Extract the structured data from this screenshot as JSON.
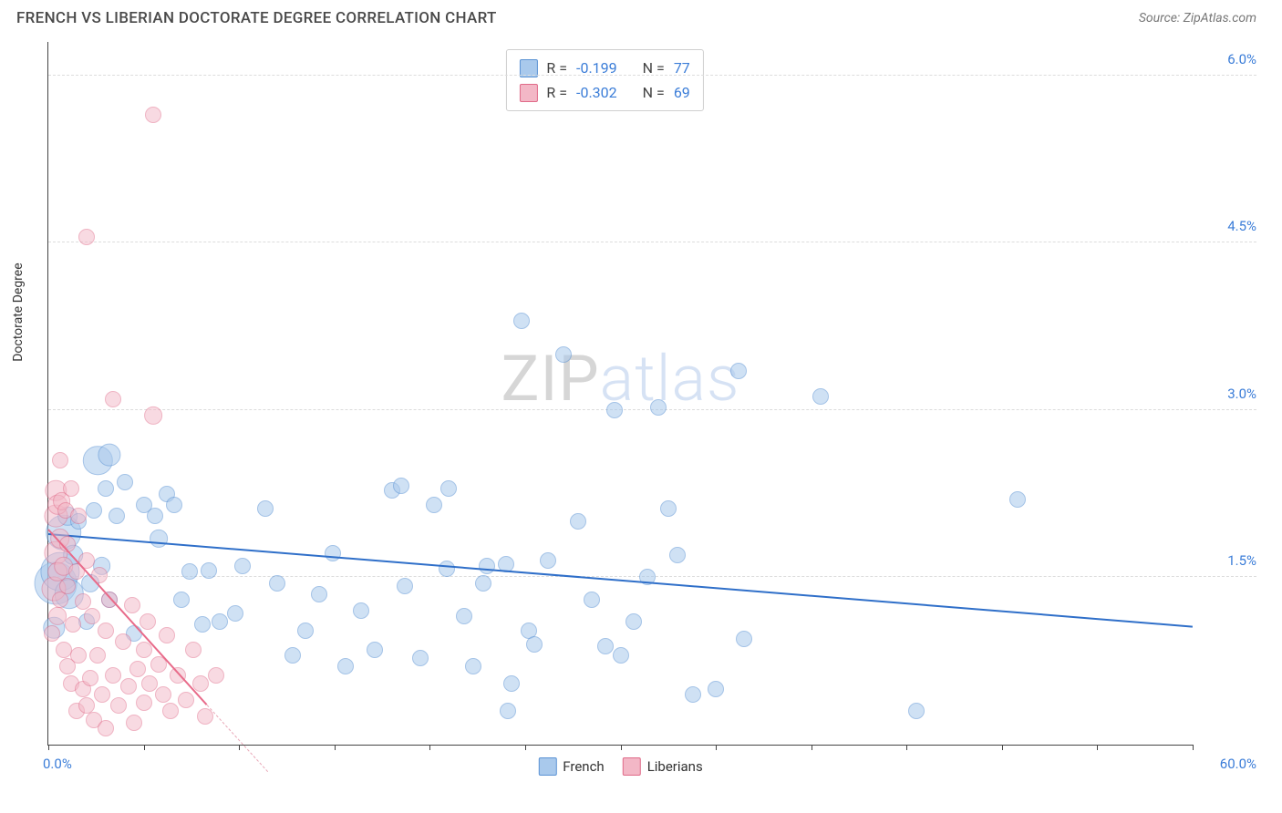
{
  "title": "FRENCH VS LIBERIAN DOCTORATE DEGREE CORRELATION CHART",
  "source_label": "Source:",
  "source_value": "ZipAtlas.com",
  "ylabel": "Doctorate Degree",
  "watermark": {
    "part1": "ZIP",
    "part2": "atlas"
  },
  "chart": {
    "type": "scatter",
    "xlim": [
      0,
      60
    ],
    "ylim": [
      0,
      6.3
    ],
    "x_tick_step": 5,
    "y_ticks": [
      1.5,
      3.0,
      4.5,
      6.0
    ],
    "y_tick_labels": [
      "1.5%",
      "3.0%",
      "4.5%",
      "6.0%"
    ],
    "x_min_label": "0.0%",
    "x_max_label": "60.0%",
    "background_color": "#ffffff",
    "grid_color": "#dcdcdc",
    "axis_color": "#444444",
    "tick_label_color": "#3b7dd8",
    "point_base_radius": 9,
    "series": [
      {
        "name": "French",
        "fill": "#a9c9ec",
        "stroke": "#5b93d4",
        "fill_opacity": 0.55,
        "trend": {
          "x1": 0,
          "y1": 1.88,
          "x2": 60,
          "y2": 1.05,
          "color": "#2f6fc9",
          "width": 2.5
        },
        "points": [
          {
            "x": 0.3,
            "y": 1.05,
            "s": 1.3
          },
          {
            "x": 0.4,
            "y": 1.45,
            "s": 2.6
          },
          {
            "x": 0.6,
            "y": 1.55,
            "s": 2.4
          },
          {
            "x": 0.8,
            "y": 1.9,
            "s": 2.2
          },
          {
            "x": 1.0,
            "y": 2.05,
            "s": 1.2
          },
          {
            "x": 1.1,
            "y": 1.35,
            "s": 1.8
          },
          {
            "x": 1.3,
            "y": 1.7,
            "s": 1.2
          },
          {
            "x": 1.6,
            "y": 2.0,
            "s": 1.0
          },
          {
            "x": 2.0,
            "y": 1.1,
            "s": 1.0
          },
          {
            "x": 2.2,
            "y": 1.45,
            "s": 1.1
          },
          {
            "x": 2.4,
            "y": 2.1,
            "s": 1.0
          },
          {
            "x": 2.8,
            "y": 1.6,
            "s": 1.1
          },
          {
            "x": 2.6,
            "y": 2.55,
            "s": 1.8
          },
          {
            "x": 3.0,
            "y": 2.3,
            "s": 1.0
          },
          {
            "x": 3.2,
            "y": 1.3,
            "s": 1.0
          },
          {
            "x": 3.2,
            "y": 2.6,
            "s": 1.4
          },
          {
            "x": 3.6,
            "y": 2.05,
            "s": 1.0
          },
          {
            "x": 4.0,
            "y": 2.35,
            "s": 1.0
          },
          {
            "x": 4.5,
            "y": 1.0,
            "s": 1.0
          },
          {
            "x": 5.0,
            "y": 2.15,
            "s": 1.0
          },
          {
            "x": 5.6,
            "y": 2.05,
            "s": 1.0
          },
          {
            "x": 5.8,
            "y": 1.85,
            "s": 1.1
          },
          {
            "x": 6.2,
            "y": 2.25,
            "s": 1.0
          },
          {
            "x": 6.6,
            "y": 2.15,
            "s": 1.0
          },
          {
            "x": 7.0,
            "y": 1.3,
            "s": 1.0
          },
          {
            "x": 7.4,
            "y": 1.55,
            "s": 1.0
          },
          {
            "x": 8.1,
            "y": 1.08,
            "s": 1.0
          },
          {
            "x": 8.4,
            "y": 1.56,
            "s": 1.0
          },
          {
            "x": 9.0,
            "y": 1.1,
            "s": 1.0
          },
          {
            "x": 9.8,
            "y": 1.18,
            "s": 1.0
          },
          {
            "x": 10.2,
            "y": 1.6,
            "s": 1.0
          },
          {
            "x": 11.4,
            "y": 2.12,
            "s": 1.0
          },
          {
            "x": 12.0,
            "y": 1.45,
            "s": 1.0
          },
          {
            "x": 12.8,
            "y": 0.8,
            "s": 1.0
          },
          {
            "x": 13.5,
            "y": 1.02,
            "s": 1.0
          },
          {
            "x": 14.2,
            "y": 1.35,
            "s": 1.0
          },
          {
            "x": 14.9,
            "y": 1.72,
            "s": 1.0
          },
          {
            "x": 15.6,
            "y": 0.7,
            "s": 1.0
          },
          {
            "x": 16.4,
            "y": 1.2,
            "s": 1.0
          },
          {
            "x": 17.1,
            "y": 0.85,
            "s": 1.0
          },
          {
            "x": 18.0,
            "y": 2.28,
            "s": 1.0
          },
          {
            "x": 18.7,
            "y": 1.42,
            "s": 1.0
          },
          {
            "x": 18.5,
            "y": 2.32,
            "s": 1.0
          },
          {
            "x": 19.5,
            "y": 0.78,
            "s": 1.0
          },
          {
            "x": 20.2,
            "y": 2.15,
            "s": 1.0
          },
          {
            "x": 20.9,
            "y": 1.58,
            "s": 1.0
          },
          {
            "x": 21.0,
            "y": 2.3,
            "s": 1.0
          },
          {
            "x": 21.8,
            "y": 1.15,
            "s": 1.0
          },
          {
            "x": 22.3,
            "y": 0.7,
            "s": 1.0
          },
          {
            "x": 22.8,
            "y": 1.45,
            "s": 1.0
          },
          {
            "x": 23.0,
            "y": 1.6,
            "s": 1.0
          },
          {
            "x": 24.0,
            "y": 1.62,
            "s": 1.0
          },
          {
            "x": 24.1,
            "y": 0.3,
            "s": 1.0
          },
          {
            "x": 24.3,
            "y": 0.55,
            "s": 1.0
          },
          {
            "x": 24.8,
            "y": 3.8,
            "s": 1.0
          },
          {
            "x": 25.2,
            "y": 1.02,
            "s": 1.0
          },
          {
            "x": 25.5,
            "y": 0.9,
            "s": 1.0
          },
          {
            "x": 26.2,
            "y": 1.65,
            "s": 1.0
          },
          {
            "x": 27.0,
            "y": 3.5,
            "s": 1.0
          },
          {
            "x": 27.8,
            "y": 2.0,
            "s": 1.0
          },
          {
            "x": 28.5,
            "y": 1.3,
            "s": 1.0
          },
          {
            "x": 29.2,
            "y": 0.88,
            "s": 1.0
          },
          {
            "x": 29.7,
            "y": 3.0,
            "s": 1.0
          },
          {
            "x": 30.0,
            "y": 0.8,
            "s": 1.0
          },
          {
            "x": 30.7,
            "y": 1.1,
            "s": 1.0
          },
          {
            "x": 31.4,
            "y": 1.5,
            "s": 1.0
          },
          {
            "x": 32.0,
            "y": 3.02,
            "s": 1.0
          },
          {
            "x": 32.5,
            "y": 2.12,
            "s": 1.0
          },
          {
            "x": 33.0,
            "y": 1.7,
            "s": 1.0
          },
          {
            "x": 33.8,
            "y": 0.45,
            "s": 1.0
          },
          {
            "x": 35.0,
            "y": 0.5,
            "s": 1.0
          },
          {
            "x": 36.2,
            "y": 3.35,
            "s": 1.0
          },
          {
            "x": 36.5,
            "y": 0.95,
            "s": 1.0
          },
          {
            "x": 40.5,
            "y": 3.12,
            "s": 1.0
          },
          {
            "x": 45.5,
            "y": 0.3,
            "s": 1.0
          },
          {
            "x": 50.8,
            "y": 2.2,
            "s": 1.0
          }
        ]
      },
      {
        "name": "Liberians",
        "fill": "#f3b7c6",
        "stroke": "#e06a88",
        "fill_opacity": 0.5,
        "trend_visible": {
          "x1": 0,
          "y1": 1.92,
          "x2": 8.3,
          "y2": 0.35,
          "color": "#e86b8a",
          "width": 2
        },
        "trend_dashed": {
          "x1": 8.3,
          "y1": 0.35,
          "x2": 11.5,
          "y2": -0.25,
          "color": "#e9a7b7",
          "width": 1.5
        },
        "points": [
          {
            "x": 0.2,
            "y": 1.0,
            "s": 1.0
          },
          {
            "x": 0.3,
            "y": 1.4,
            "s": 1.5
          },
          {
            "x": 0.4,
            "y": 1.72,
            "s": 1.4
          },
          {
            "x": 0.4,
            "y": 2.05,
            "s": 1.4
          },
          {
            "x": 0.4,
            "y": 2.28,
            "s": 1.3
          },
          {
            "x": 0.5,
            "y": 1.15,
            "s": 1.1
          },
          {
            "x": 0.5,
            "y": 2.15,
            "s": 1.2
          },
          {
            "x": 0.5,
            "y": 1.55,
            "s": 1.2
          },
          {
            "x": 0.6,
            "y": 1.85,
            "s": 1.2
          },
          {
            "x": 0.6,
            "y": 2.55,
            "s": 1.0
          },
          {
            "x": 0.6,
            "y": 1.3,
            "s": 1.0
          },
          {
            "x": 0.7,
            "y": 2.18,
            "s": 1.1
          },
          {
            "x": 0.8,
            "y": 1.6,
            "s": 1.2
          },
          {
            "x": 0.8,
            "y": 0.85,
            "s": 1.0
          },
          {
            "x": 0.9,
            "y": 2.1,
            "s": 1.0
          },
          {
            "x": 1.0,
            "y": 0.7,
            "s": 1.0
          },
          {
            "x": 1.0,
            "y": 1.42,
            "s": 1.0
          },
          {
            "x": 1.0,
            "y": 1.8,
            "s": 1.0
          },
          {
            "x": 1.2,
            "y": 0.55,
            "s": 1.0
          },
          {
            "x": 1.2,
            "y": 2.3,
            "s": 1.0
          },
          {
            "x": 1.3,
            "y": 1.08,
            "s": 1.0
          },
          {
            "x": 1.5,
            "y": 0.3,
            "s": 1.0
          },
          {
            "x": 1.5,
            "y": 1.55,
            "s": 1.0
          },
          {
            "x": 1.6,
            "y": 0.8,
            "s": 1.0
          },
          {
            "x": 1.6,
            "y": 2.05,
            "s": 1.0
          },
          {
            "x": 1.8,
            "y": 0.5,
            "s": 1.0
          },
          {
            "x": 1.8,
            "y": 1.28,
            "s": 1.0
          },
          {
            "x": 2.0,
            "y": 0.35,
            "s": 1.0
          },
          {
            "x": 2.0,
            "y": 1.65,
            "s": 1.0
          },
          {
            "x": 2.0,
            "y": 4.55,
            "s": 1.0
          },
          {
            "x": 2.2,
            "y": 0.6,
            "s": 1.0
          },
          {
            "x": 2.3,
            "y": 1.15,
            "s": 1.0
          },
          {
            "x": 2.4,
            "y": 0.22,
            "s": 1.0
          },
          {
            "x": 2.6,
            "y": 0.8,
            "s": 1.0
          },
          {
            "x": 2.7,
            "y": 1.52,
            "s": 1.0
          },
          {
            "x": 2.8,
            "y": 0.45,
            "s": 1.0
          },
          {
            "x": 3.0,
            "y": 1.02,
            "s": 1.0
          },
          {
            "x": 3.0,
            "y": 0.15,
            "s": 1.0
          },
          {
            "x": 3.2,
            "y": 1.3,
            "s": 1.0
          },
          {
            "x": 3.4,
            "y": 0.62,
            "s": 1.0
          },
          {
            "x": 3.4,
            "y": 3.1,
            "s": 1.0
          },
          {
            "x": 3.7,
            "y": 0.35,
            "s": 1.0
          },
          {
            "x": 3.9,
            "y": 0.92,
            "s": 1.0
          },
          {
            "x": 4.2,
            "y": 0.52,
            "s": 1.0
          },
          {
            "x": 4.4,
            "y": 1.25,
            "s": 1.0
          },
          {
            "x": 4.5,
            "y": 0.2,
            "s": 1.0
          },
          {
            "x": 4.7,
            "y": 0.68,
            "s": 1.0
          },
          {
            "x": 5.0,
            "y": 0.85,
            "s": 1.0
          },
          {
            "x": 5.0,
            "y": 0.38,
            "s": 1.0
          },
          {
            "x": 5.2,
            "y": 1.1,
            "s": 1.0
          },
          {
            "x": 5.3,
            "y": 0.55,
            "s": 1.0
          },
          {
            "x": 5.5,
            "y": 2.95,
            "s": 1.1
          },
          {
            "x": 5.5,
            "y": 5.65,
            "s": 1.0
          },
          {
            "x": 5.8,
            "y": 0.72,
            "s": 1.0
          },
          {
            "x": 6.0,
            "y": 0.45,
            "s": 1.0
          },
          {
            "x": 6.2,
            "y": 0.98,
            "s": 1.0
          },
          {
            "x": 6.4,
            "y": 0.3,
            "s": 1.0
          },
          {
            "x": 6.8,
            "y": 0.62,
            "s": 1.0
          },
          {
            "x": 7.2,
            "y": 0.4,
            "s": 1.0
          },
          {
            "x": 7.6,
            "y": 0.85,
            "s": 1.0
          },
          {
            "x": 8.0,
            "y": 0.55,
            "s": 1.0
          },
          {
            "x": 8.2,
            "y": 0.25,
            "s": 1.0
          },
          {
            "x": 8.8,
            "y": 0.62,
            "s": 1.0
          }
        ]
      }
    ]
  },
  "stats": [
    {
      "swatch_fill": "#a9c9ec",
      "swatch_stroke": "#5b93d4",
      "r_label": "R =",
      "r_value": "-0.199",
      "n_label": "N =",
      "n_value": "77"
    },
    {
      "swatch_fill": "#f3b7c6",
      "swatch_stroke": "#e06a88",
      "r_label": "R =",
      "r_value": "-0.302",
      "n_label": "N =",
      "n_value": "69"
    }
  ],
  "legend": [
    {
      "label": "French",
      "fill": "#a9c9ec",
      "stroke": "#5b93d4"
    },
    {
      "label": "Liberians",
      "fill": "#f3b7c6",
      "stroke": "#e06a88"
    }
  ]
}
